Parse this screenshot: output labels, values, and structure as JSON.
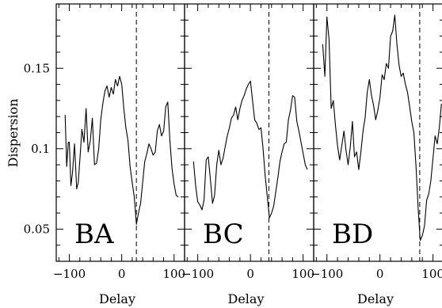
{
  "chart_data": [
    {
      "type": "line",
      "panel_label": "BA",
      "xlabel": "Delay",
      "ylabel": "Dispersion",
      "xlim": [
        -125,
        120
      ],
      "ylim": [
        0.03,
        0.19
      ],
      "xticks": [
        -100,
        0,
        100
      ],
      "xtick_labels": [
        "−100",
        "0",
        "100"
      ],
      "yticks": [
        0.05,
        0.1,
        0.15
      ],
      "ytick_labels": [
        "0.05",
        "0.1",
        "0.15"
      ],
      "grid": false,
      "marker_delay": 28,
      "series": [
        {
          "x": [
            -108,
            -105,
            -102,
            -100,
            -97,
            -94,
            -90,
            -86,
            -83,
            -80,
            -76,
            -72,
            -68,
            -64,
            -60,
            -56,
            -52,
            -48,
            -44,
            -40,
            -36,
            -32,
            -28,
            -24,
            -20,
            -16,
            -12,
            -8,
            -4,
            0,
            4,
            8,
            12,
            16,
            20,
            24,
            28,
            32,
            36,
            40,
            44,
            48,
            52,
            56,
            60,
            64,
            68,
            72,
            76,
            80,
            84,
            88,
            92,
            96,
            100,
            104,
            108
          ],
          "y": [
            0.121,
            0.089,
            0.104,
            0.104,
            0.077,
            0.085,
            0.103,
            0.075,
            0.079,
            0.093,
            0.112,
            0.104,
            0.125,
            0.098,
            0.105,
            0.119,
            0.09,
            0.091,
            0.1,
            0.118,
            0.128,
            0.136,
            0.139,
            0.132,
            0.138,
            0.134,
            0.143,
            0.139,
            0.145,
            0.14,
            0.125,
            0.113,
            0.105,
            0.089,
            0.079,
            0.07,
            0.053,
            0.06,
            0.066,
            0.079,
            0.092,
            0.097,
            0.103,
            0.1,
            0.096,
            0.098,
            0.111,
            0.115,
            0.108,
            0.111,
            0.126,
            0.129,
            0.105,
            0.088,
            0.078,
            0.071,
            0.07
          ]
        }
      ]
    },
    {
      "type": "line",
      "panel_label": "BC",
      "xlabel": "Delay",
      "ylabel": "",
      "xlim": [
        -125,
        120
      ],
      "ylim": [
        0.03,
        0.19
      ],
      "xticks": [
        -100,
        0,
        100
      ],
      "xtick_labels": [
        "−100",
        "0",
        "100"
      ],
      "grid": false,
      "marker_delay": 35,
      "series": [
        {
          "x": [
            -108,
            -104,
            -100,
            -96,
            -92,
            -88,
            -84,
            -80,
            -76,
            -72,
            -68,
            -64,
            -60,
            -56,
            -52,
            -48,
            -44,
            -40,
            -36,
            -32,
            -28,
            -24,
            -20,
            -16,
            -12,
            -8,
            -4,
            0,
            4,
            8,
            12,
            16,
            20,
            24,
            28,
            32,
            36,
            40,
            44,
            48,
            52,
            56,
            60,
            64,
            68,
            72,
            76,
            80,
            84,
            88,
            92,
            96,
            100,
            104,
            108
          ],
          "y": [
            0.092,
            0.077,
            0.067,
            0.065,
            0.062,
            0.068,
            0.093,
            0.095,
            0.081,
            0.066,
            0.071,
            0.09,
            0.099,
            0.09,
            0.094,
            0.101,
            0.108,
            0.113,
            0.119,
            0.121,
            0.126,
            0.118,
            0.125,
            0.13,
            0.133,
            0.137,
            0.14,
            0.142,
            0.13,
            0.118,
            0.116,
            0.112,
            0.113,
            0.1,
            0.083,
            0.07,
            0.057,
            0.06,
            0.064,
            0.073,
            0.082,
            0.092,
            0.098,
            0.103,
            0.104,
            0.118,
            0.124,
            0.133,
            0.132,
            0.117,
            0.111,
            0.104,
            0.097,
            0.09,
            0.087
          ]
        }
      ]
    },
    {
      "type": "line",
      "panel_label": "BD",
      "xlabel": "Delay",
      "ylabel": "",
      "xlim": [
        -125,
        120
      ],
      "ylim": [
        0.03,
        0.19
      ],
      "xticks": [
        -100,
        0,
        100
      ],
      "xtick_labels": [
        "−100",
        "0",
        "100"
      ],
      "grid": false,
      "marker_delay": 75,
      "series": [
        {
          "x": [
            -108,
            -104,
            -100,
            -96,
            -92,
            -88,
            -84,
            -80,
            -76,
            -72,
            -68,
            -64,
            -60,
            -56,
            -52,
            -48,
            -44,
            -40,
            -36,
            -32,
            -28,
            -24,
            -20,
            -16,
            -12,
            -8,
            -4,
            0,
            4,
            8,
            12,
            16,
            20,
            24,
            28,
            32,
            36,
            40,
            44,
            48,
            52,
            56,
            60,
            64,
            68,
            72,
            76,
            80,
            84,
            88,
            92,
            96,
            100,
            104,
            108,
            112,
            116
          ],
          "y": [
            0.165,
            0.145,
            0.182,
            0.168,
            0.125,
            0.13,
            0.115,
            0.102,
            0.093,
            0.102,
            0.111,
            0.099,
            0.09,
            0.101,
            0.117,
            0.095,
            0.098,
            0.087,
            0.098,
            0.111,
            0.119,
            0.135,
            0.143,
            0.133,
            0.127,
            0.118,
            0.124,
            0.132,
            0.146,
            0.143,
            0.153,
            0.15,
            0.17,
            0.173,
            0.183,
            0.165,
            0.152,
            0.145,
            0.147,
            0.14,
            0.135,
            0.126,
            0.117,
            0.11,
            0.089,
            0.063,
            0.043,
            0.046,
            0.052,
            0.068,
            0.072,
            0.08,
            0.094,
            0.108,
            0.103,
            0.113,
            0.128
          ]
        }
      ]
    }
  ]
}
